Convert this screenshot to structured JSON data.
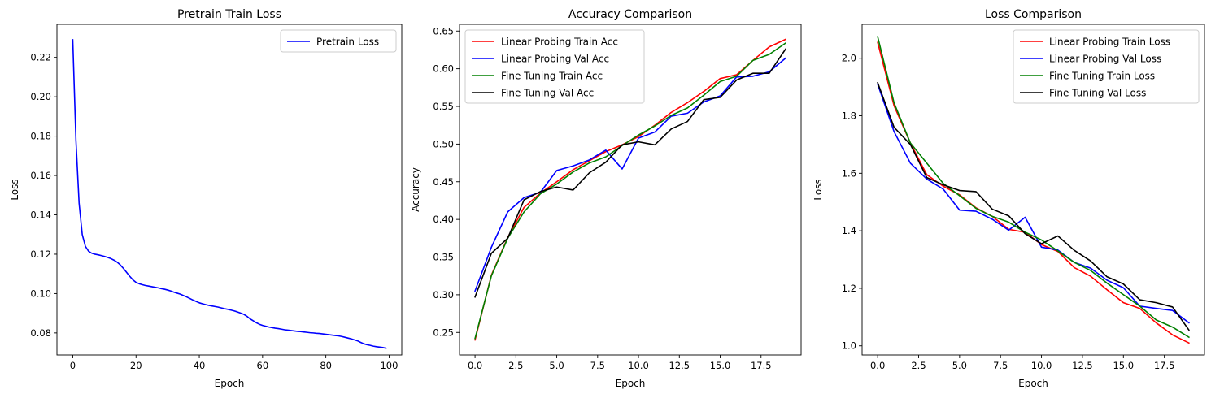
{
  "chart_data": [
    {
      "type": "line",
      "title": "Pretrain Train Loss",
      "xlabel": "Epoch",
      "ylabel": "Loss",
      "xlim": [
        -5,
        104
      ],
      "ylim": [
        0.0688,
        0.2368
      ],
      "xticks": [
        0,
        20,
        40,
        60,
        80,
        100
      ],
      "xtick_labels": [
        "0",
        "20",
        "40",
        "60",
        "80",
        "100"
      ],
      "yticks": [
        0.08,
        0.1,
        0.12,
        0.14,
        0.16,
        0.18,
        0.2,
        0.22
      ],
      "ytick_labels": [
        "0.08",
        "0.10",
        "0.12",
        "0.14",
        "0.16",
        "0.18",
        "0.20",
        "0.22"
      ],
      "grid": false,
      "legend": "upper-right",
      "series": [
        {
          "name": "Pretrain Loss",
          "color": "#0000ff",
          "x": [
            0,
            1,
            2,
            3,
            4,
            5,
            6,
            7,
            8,
            9,
            10,
            11,
            12,
            13,
            14,
            15,
            16,
            17,
            18,
            19,
            20,
            21,
            22,
            23,
            24,
            25,
            26,
            27,
            28,
            29,
            30,
            31,
            32,
            33,
            34,
            35,
            36,
            37,
            38,
            39,
            40,
            41,
            42,
            43,
            44,
            45,
            46,
            47,
            48,
            49,
            50,
            51,
            52,
            53,
            54,
            55,
            56,
            57,
            58,
            59,
            60,
            61,
            62,
            63,
            64,
            65,
            66,
            67,
            68,
            69,
            70,
            71,
            72,
            73,
            74,
            75,
            76,
            77,
            78,
            79,
            80,
            81,
            82,
            83,
            84,
            85,
            86,
            87,
            88,
            89,
            90,
            91,
            92,
            93,
            94,
            95,
            96,
            97,
            98,
            99
          ],
          "y": [
            0.229,
            0.178,
            0.146,
            0.13,
            0.124,
            0.1215,
            0.1205,
            0.12,
            0.1197,
            0.1193,
            0.1189,
            0.1184,
            0.1178,
            0.117,
            0.116,
            0.1146,
            0.1128,
            0.1108,
            0.1088,
            0.107,
            0.1057,
            0.105,
            0.1045,
            0.1041,
            0.1038,
            0.1035,
            0.1032,
            0.1029,
            0.1025,
            0.1022,
            0.1018,
            0.1013,
            0.1007,
            0.1002,
            0.0997,
            0.099,
            0.0983,
            0.0975,
            0.0967,
            0.096,
            0.0953,
            0.0948,
            0.0944,
            0.094,
            0.0937,
            0.0934,
            0.0931,
            0.0927,
            0.0923,
            0.092,
            0.0916,
            0.0912,
            0.0907,
            0.0901,
            0.0895,
            0.0885,
            0.0872,
            0.0862,
            0.0852,
            0.0844,
            0.0838,
            0.0834,
            0.083,
            0.0827,
            0.0824,
            0.0822,
            0.0819,
            0.0816,
            0.0814,
            0.0812,
            0.081,
            0.0808,
            0.0807,
            0.0805,
            0.0803,
            0.0801,
            0.08,
            0.0798,
            0.0797,
            0.0795,
            0.0793,
            0.0791,
            0.0789,
            0.0787,
            0.0785,
            0.0782,
            0.0778,
            0.0774,
            0.077,
            0.0765,
            0.076,
            0.0752,
            0.0745,
            0.074,
            0.0737,
            0.0733,
            0.073,
            0.0728,
            0.0726,
            0.0722
          ]
        }
      ]
    },
    {
      "type": "line",
      "title": "Accuracy Comparison",
      "xlabel": "Epoch",
      "ylabel": "Accuracy",
      "xlim": [
        -0.95,
        19.95
      ],
      "ylim": [
        0.2201,
        0.6589
      ],
      "xticks": [
        0,
        2.5,
        5,
        7.5,
        10,
        12.5,
        15,
        17.5
      ],
      "xtick_labels": [
        "0.0",
        "2.5",
        "5.0",
        "7.5",
        "10.0",
        "12.5",
        "15.0",
        "17.5"
      ],
      "yticks": [
        0.25,
        0.3,
        0.35,
        0.4,
        0.45,
        0.5,
        0.55,
        0.6,
        0.65
      ],
      "ytick_labels": [
        "0.25",
        "0.30",
        "0.35",
        "0.40",
        "0.45",
        "0.50",
        "0.55",
        "0.60",
        "0.65"
      ],
      "grid": false,
      "legend": "upper-left",
      "series": [
        {
          "name": "Linear Probing Train Acc",
          "color": "#ff0000",
          "x": [
            0,
            1,
            2,
            3,
            4,
            5,
            6,
            7,
            8,
            9,
            10,
            11,
            12,
            13,
            14,
            15,
            16,
            17,
            18,
            19
          ],
          "y": [
            0.24,
            0.326,
            0.376,
            0.416,
            0.435,
            0.45,
            0.466,
            0.478,
            0.49,
            0.499,
            0.51,
            0.525,
            0.542,
            0.555,
            0.57,
            0.587,
            0.592,
            0.611,
            0.629,
            0.639
          ]
        },
        {
          "name": "Linear Probing Val Acc",
          "color": "#0000ff",
          "x": [
            0,
            1,
            2,
            3,
            4,
            5,
            6,
            7,
            8,
            9,
            10,
            11,
            12,
            13,
            14,
            15,
            16,
            17,
            18,
            19
          ],
          "y": [
            0.305,
            0.363,
            0.41,
            0.429,
            0.436,
            0.465,
            0.471,
            0.479,
            0.492,
            0.467,
            0.508,
            0.516,
            0.537,
            0.541,
            0.556,
            0.564,
            0.589,
            0.59,
            0.596,
            0.614
          ]
        },
        {
          "name": "Fine Tuning Train Acc",
          "color": "#008000",
          "x": [
            0,
            1,
            2,
            3,
            4,
            5,
            6,
            7,
            8,
            9,
            10,
            11,
            12,
            13,
            14,
            15,
            16,
            17,
            18,
            19
          ],
          "y": [
            0.242,
            0.325,
            0.375,
            0.41,
            0.434,
            0.447,
            0.463,
            0.475,
            0.483,
            0.498,
            0.512,
            0.524,
            0.538,
            0.548,
            0.565,
            0.583,
            0.59,
            0.611,
            0.619,
            0.634
          ]
        },
        {
          "name": "Fine Tuning Val Acc",
          "color": "#000000",
          "x": [
            0,
            1,
            2,
            3,
            4,
            5,
            6,
            7,
            8,
            9,
            10,
            11,
            12,
            13,
            14,
            15,
            16,
            17,
            18,
            19
          ],
          "y": [
            0.297,
            0.355,
            0.375,
            0.426,
            0.437,
            0.443,
            0.439,
            0.462,
            0.476,
            0.499,
            0.503,
            0.499,
            0.52,
            0.53,
            0.559,
            0.562,
            0.585,
            0.594,
            0.594,
            0.626
          ]
        }
      ]
    },
    {
      "type": "line",
      "title": "Loss Comparison",
      "xlabel": "Epoch",
      "ylabel": "Loss",
      "xlim": [
        -0.95,
        19.95
      ],
      "ylim": [
        0.9682,
        2.1178
      ],
      "xticks": [
        0,
        2.5,
        5,
        7.5,
        10,
        12.5,
        15,
        17.5
      ],
      "xtick_labels": [
        "0.0",
        "2.5",
        "5.0",
        "7.5",
        "10.0",
        "12.5",
        "15.0",
        "17.5"
      ],
      "yticks": [
        1.0,
        1.2,
        1.4,
        1.6,
        1.8,
        2.0
      ],
      "ytick_labels": [
        "1.0",
        "1.2",
        "1.4",
        "1.6",
        "1.8",
        "2.0"
      ],
      "grid": false,
      "legend": "upper-right",
      "series": [
        {
          "name": "Linear Probing Train Loss",
          "color": "#ff0000",
          "x": [
            0,
            1,
            2,
            3,
            4,
            5,
            6,
            7,
            8,
            9,
            10,
            11,
            12,
            13,
            14,
            15,
            16,
            17,
            18,
            19
          ],
          "y": [
            2.055,
            1.835,
            1.705,
            1.595,
            1.555,
            1.525,
            1.48,
            1.45,
            1.405,
            1.395,
            1.352,
            1.328,
            1.272,
            1.242,
            1.195,
            1.15,
            1.13,
            1.08,
            1.038,
            1.01
          ]
        },
        {
          "name": "Linear Probing Val Loss",
          "color": "#0000ff",
          "x": [
            0,
            1,
            2,
            3,
            4,
            5,
            6,
            7,
            8,
            9,
            10,
            11,
            12,
            13,
            14,
            15,
            16,
            17,
            18,
            19
          ],
          "y": [
            1.91,
            1.745,
            1.635,
            1.58,
            1.545,
            1.472,
            1.468,
            1.44,
            1.402,
            1.447,
            1.343,
            1.333,
            1.29,
            1.27,
            1.228,
            1.202,
            1.138,
            1.13,
            1.123,
            1.08
          ]
        },
        {
          "name": "Fine Tuning Train Loss",
          "color": "#008000",
          "x": [
            0,
            1,
            2,
            3,
            4,
            5,
            6,
            7,
            8,
            9,
            10,
            11,
            12,
            13,
            14,
            15,
            16,
            17,
            18,
            19
          ],
          "y": [
            2.075,
            1.845,
            1.705,
            1.635,
            1.565,
            1.522,
            1.478,
            1.45,
            1.43,
            1.395,
            1.368,
            1.33,
            1.29,
            1.262,
            1.218,
            1.178,
            1.138,
            1.09,
            1.065,
            1.03
          ]
        },
        {
          "name": "Fine Tuning Val Loss",
          "color": "#000000",
          "x": [
            0,
            1,
            2,
            3,
            4,
            5,
            6,
            7,
            8,
            9,
            10,
            11,
            12,
            13,
            14,
            15,
            16,
            17,
            18,
            19
          ],
          "y": [
            1.915,
            1.76,
            1.7,
            1.585,
            1.56,
            1.54,
            1.536,
            1.475,
            1.452,
            1.39,
            1.355,
            1.382,
            1.332,
            1.295,
            1.24,
            1.215,
            1.16,
            1.15,
            1.135,
            1.055
          ]
        }
      ]
    }
  ]
}
